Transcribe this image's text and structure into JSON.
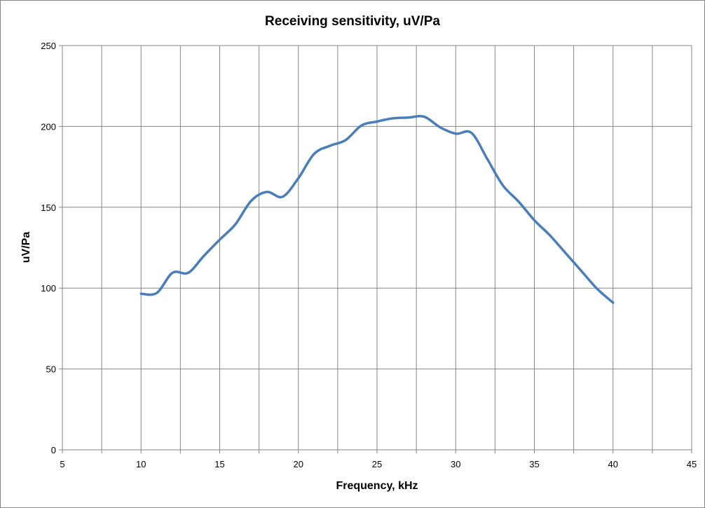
{
  "chart_data": {
    "type": "line",
    "title": "Receiving sensitivity, uV/Pa",
    "xlabel": "Frequency, kHz",
    "ylabel": "uV/Pa",
    "xlim": [
      5,
      45
    ],
    "ylim": [
      0,
      250
    ],
    "x_ticks": [
      5,
      10,
      15,
      20,
      25,
      30,
      35,
      40,
      45
    ],
    "y_ticks": [
      0,
      50,
      100,
      150,
      200,
      250
    ],
    "x_minor_step": 2.5,
    "grid": true,
    "legend": "none",
    "series": [
      {
        "color": "#4A7EBB",
        "x": [
          10,
          11,
          12,
          13,
          14,
          15,
          16,
          17,
          18,
          19,
          20,
          21,
          22,
          23,
          24,
          25,
          26,
          27,
          28,
          29,
          30,
          31,
          32,
          33,
          34,
          35,
          36,
          37,
          38,
          39,
          40
        ],
        "y": [
          96.5,
          97,
          109.5,
          109.5,
          120,
          130,
          139.5,
          154,
          159.5,
          156.5,
          168,
          183,
          188,
          191.5,
          200.5,
          203,
          205,
          205.5,
          206,
          199.5,
          195.5,
          196,
          180,
          163.5,
          153.5,
          142,
          132.5,
          121.5,
          110.5,
          99.5,
          91
        ]
      }
    ]
  }
}
